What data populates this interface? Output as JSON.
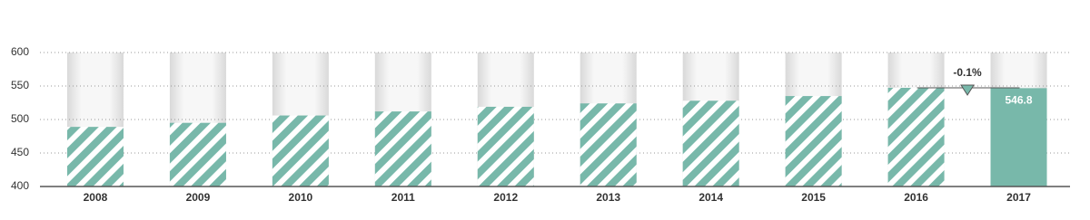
{
  "chart_data": {
    "type": "bar",
    "categories": [
      "2008",
      "2009",
      "2010",
      "2011",
      "2012",
      "2013",
      "2014",
      "2015",
      "2016",
      "2017"
    ],
    "values": [
      489,
      495,
      506,
      512,
      519,
      524,
      528,
      535,
      547.3,
      546.8
    ],
    "color": "#78b8aa",
    "ylim": [
      400,
      600
    ],
    "yticks": [
      400,
      450,
      500,
      550,
      600
    ],
    "grid": true,
    "annotation": "-0.1%"
  }
}
